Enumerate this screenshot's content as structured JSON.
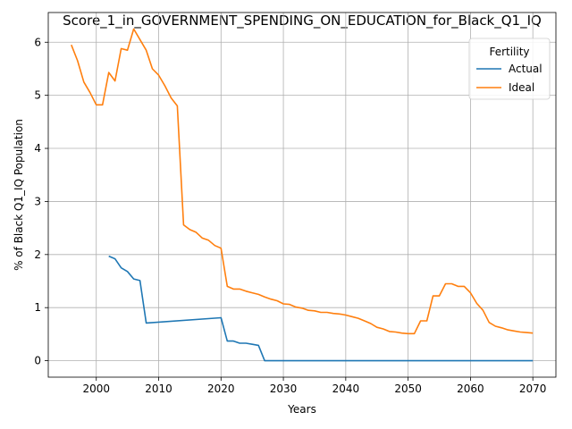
{
  "chart_data": {
    "type": "line",
    "title": "Score_1_in_GOVERNMENT_SPENDING_ON_EDUCATION_for_Black_Q1_IQ",
    "xlabel": "Years",
    "ylabel": "% of Black Q1_IQ Population",
    "xlim": [
      1992.3,
      2073.7
    ],
    "ylim": [
      -0.31,
      6.56
    ],
    "x_ticks": [
      2000,
      2010,
      2020,
      2030,
      2040,
      2050,
      2060,
      2070
    ],
    "y_ticks": [
      0,
      1,
      2,
      3,
      4,
      5,
      6
    ],
    "grid": true,
    "legend": {
      "title": "Fertility",
      "placement": "upper right",
      "entries": [
        "Actual",
        "Ideal"
      ]
    },
    "series": [
      {
        "name": "Actual",
        "color": "#1f77b4",
        "points": [
          [
            2002,
            1.97
          ],
          [
            2003,
            1.92
          ],
          [
            2004,
            1.75
          ],
          [
            2005,
            1.68
          ],
          [
            2006,
            1.54
          ],
          [
            2007,
            1.51
          ],
          [
            2008,
            0.71
          ],
          [
            2020,
            0.81
          ],
          [
            2021,
            0.37
          ],
          [
            2022,
            0.37
          ],
          [
            2023,
            0.33
          ],
          [
            2024,
            0.33
          ],
          [
            2025,
            0.31
          ],
          [
            2026,
            0.29
          ],
          [
            2027,
            0.0
          ],
          [
            2070,
            0.0
          ]
        ]
      },
      {
        "name": "Ideal",
        "color": "#ff7f0e",
        "points": [
          [
            1996,
            5.95
          ],
          [
            1997,
            5.65
          ],
          [
            1998,
            5.25
          ],
          [
            1999,
            5.05
          ],
          [
            2000,
            4.82
          ],
          [
            2001,
            4.82
          ],
          [
            2002,
            5.43
          ],
          [
            2003,
            5.27
          ],
          [
            2004,
            5.88
          ],
          [
            2005,
            5.85
          ],
          [
            2006,
            6.25
          ],
          [
            2007,
            6.05
          ],
          [
            2008,
            5.85
          ],
          [
            2009,
            5.5
          ],
          [
            2010,
            5.38
          ],
          [
            2011,
            5.18
          ],
          [
            2012,
            4.95
          ],
          [
            2013,
            4.8
          ],
          [
            2014,
            2.56
          ],
          [
            2015,
            2.47
          ],
          [
            2016,
            2.42
          ],
          [
            2017,
            2.31
          ],
          [
            2018,
            2.27
          ],
          [
            2019,
            2.17
          ],
          [
            2020,
            2.12
          ],
          [
            2021,
            1.4
          ],
          [
            2022,
            1.35
          ],
          [
            2023,
            1.35
          ],
          [
            2024,
            1.31
          ],
          [
            2025,
            1.28
          ],
          [
            2026,
            1.25
          ],
          [
            2027,
            1.2
          ],
          [
            2028,
            1.16
          ],
          [
            2029,
            1.13
          ],
          [
            2030,
            1.07
          ],
          [
            2031,
            1.06
          ],
          [
            2032,
            1.01
          ],
          [
            2033,
            0.99
          ],
          [
            2034,
            0.95
          ],
          [
            2035,
            0.94
          ],
          [
            2036,
            0.91
          ],
          [
            2037,
            0.91
          ],
          [
            2038,
            0.89
          ],
          [
            2039,
            0.88
          ],
          [
            2040,
            0.86
          ],
          [
            2041,
            0.83
          ],
          [
            2042,
            0.8
          ],
          [
            2043,
            0.75
          ],
          [
            2044,
            0.7
          ],
          [
            2045,
            0.63
          ],
          [
            2046,
            0.6
          ],
          [
            2047,
            0.55
          ],
          [
            2048,
            0.54
          ],
          [
            2049,
            0.52
          ],
          [
            2050,
            0.51
          ],
          [
            2051,
            0.51
          ],
          [
            2052,
            0.75
          ],
          [
            2053,
            0.75
          ],
          [
            2054,
            1.22
          ],
          [
            2055,
            1.22
          ],
          [
            2056,
            1.45
          ],
          [
            2057,
            1.45
          ],
          [
            2058,
            1.4
          ],
          [
            2059,
            1.4
          ],
          [
            2060,
            1.28
          ],
          [
            2061,
            1.08
          ],
          [
            2062,
            0.95
          ],
          [
            2063,
            0.72
          ],
          [
            2064,
            0.65
          ],
          [
            2065,
            0.62
          ],
          [
            2066,
            0.58
          ],
          [
            2067,
            0.56
          ],
          [
            2068,
            0.54
          ],
          [
            2069,
            0.53
          ],
          [
            2070,
            0.52
          ]
        ]
      }
    ]
  }
}
